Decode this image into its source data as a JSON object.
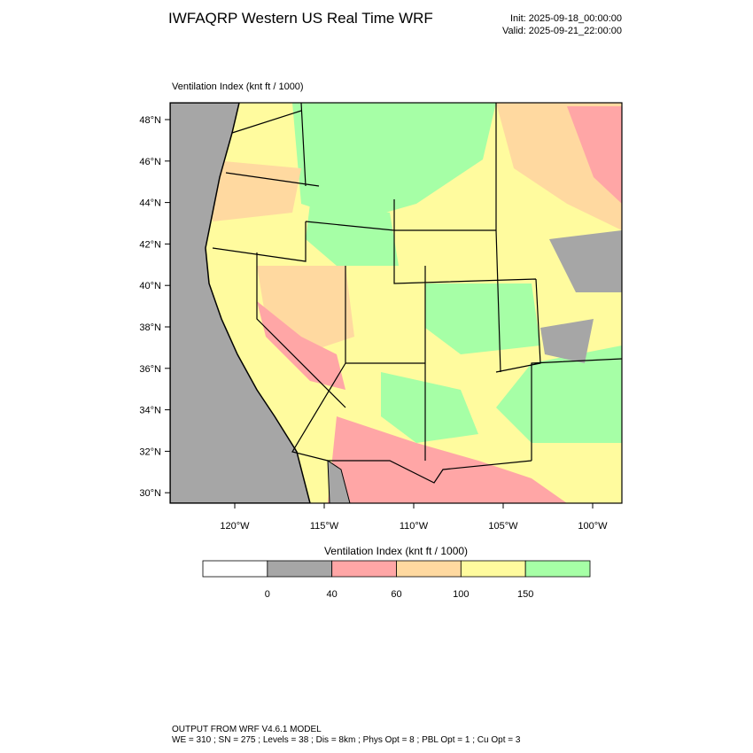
{
  "header": {
    "title": "IWFAQRP Western US Real Time WRF",
    "init": "Init: 2025-09-18_00:00:00",
    "valid": "Valid: 2025-09-21_22:00:00"
  },
  "map": {
    "label": "Ventilation Index   (knt ft / 1000)",
    "lat_labels": [
      "48°N",
      "46°N",
      "44°N",
      "42°N",
      "40°N",
      "38°N",
      "36°N",
      "34°N",
      "32°N",
      "30°N"
    ],
    "lon_labels": [
      "120°W",
      "115°W",
      "110°W",
      "105°W",
      "100°W"
    ]
  },
  "colorbar": {
    "title": "Ventilation Index   (knt ft / 1000)",
    "colors": [
      "#ffffff",
      "#a6a6a6",
      "#ffa6a6",
      "#ffd9a0",
      "#fffb9e",
      "#a6ffa6"
    ],
    "labels": [
      "0",
      "40",
      "60",
      "100",
      "150"
    ]
  },
  "footer": {
    "line1": "OUTPUT FROM WRF V4.6.1 MODEL",
    "line2": "WE = 310 ; SN = 275 ; Levels = 38 ; Dis = 8km ; Phys Opt = 8 ; PBL Opt = 1 ; Cu Opt = 3"
  }
}
